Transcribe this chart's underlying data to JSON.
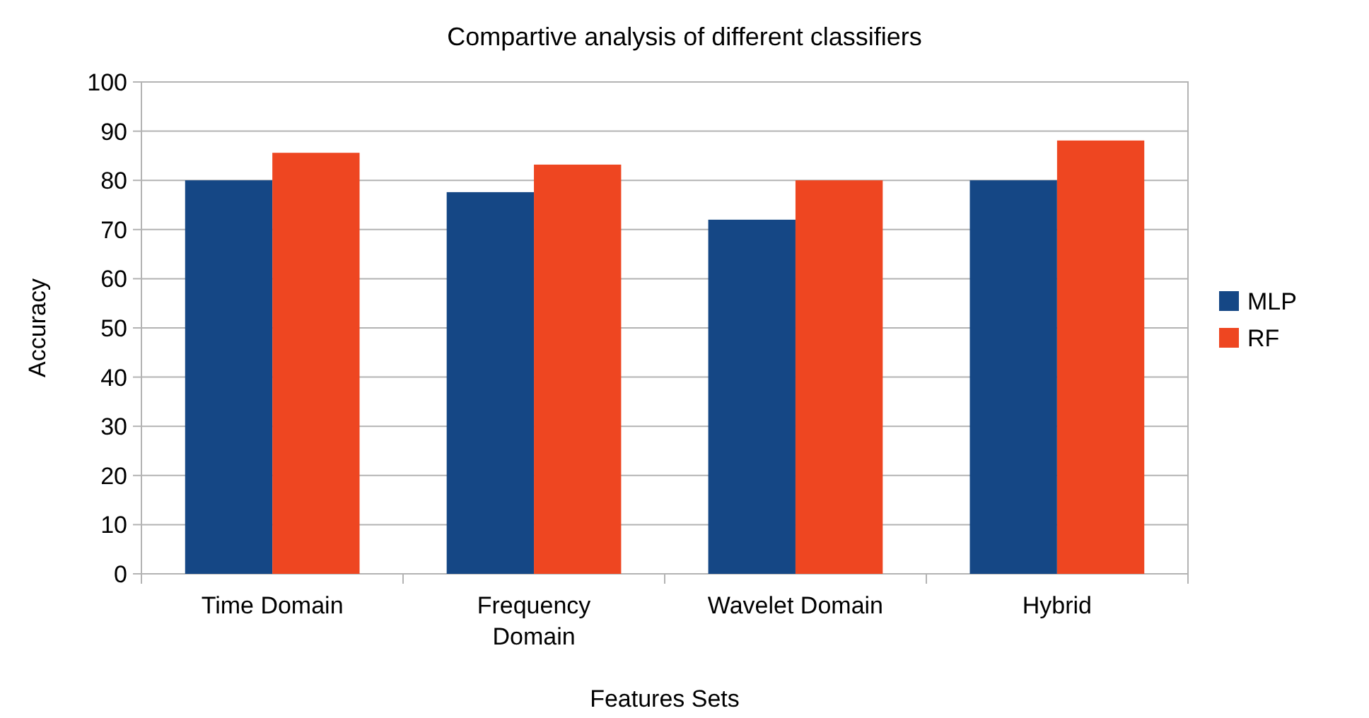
{
  "chart_data": {
    "type": "bar",
    "title": "Compartive analysis of different classifiers",
    "xlabel": "Features Sets",
    "ylabel": "Accuracy",
    "categories": [
      "Time Domain",
      "Frequency Domain",
      "Wavelet Domain",
      "Hybrid"
    ],
    "series": [
      {
        "name": "MLP",
        "color": "#154785",
        "values": [
          80.0,
          77.6,
          72.0,
          80.0
        ]
      },
      {
        "name": "RF",
        "color": "#ee4621",
        "values": [
          85.6,
          83.2,
          80.0,
          88.1
        ]
      }
    ],
    "ylim": [
      0,
      100
    ],
    "yticks": [
      0,
      10,
      20,
      30,
      40,
      50,
      60,
      70,
      80,
      90,
      100
    ],
    "grid": "y",
    "legend": "right"
  }
}
